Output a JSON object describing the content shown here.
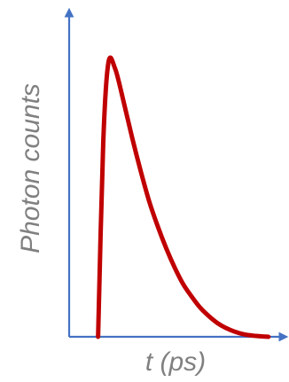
{
  "chart_data": {
    "type": "line",
    "title": "",
    "xlabel": "t (ps)",
    "ylabel": "Photon counts",
    "xticks": [],
    "yticks": [],
    "grid": false,
    "legend": "none",
    "colors": {
      "axis": "#4472C4",
      "curve": "#C00000",
      "label": "#808080"
    },
    "series": [
      {
        "x": [
          0.0,
          0.03,
          0.06,
          0.1,
          0.15,
          0.2,
          0.25,
          0.3,
          0.35,
          0.4,
          0.45,
          0.5,
          0.55,
          0.6,
          0.65,
          0.7,
          0.75,
          0.8,
          0.85,
          0.9,
          0.95,
          1.0
        ],
        "y": [
          0.0,
          0.7,
          0.99,
          0.97,
          0.85,
          0.72,
          0.6,
          0.49,
          0.4,
          0.32,
          0.25,
          0.19,
          0.145,
          0.105,
          0.075,
          0.05,
          0.032,
          0.019,
          0.01,
          0.005,
          0.002,
          0.0
        ]
      }
    ],
    "xlim": [
      -0.17,
      1.1
    ],
    "ylim": [
      0,
      1.18
    ]
  }
}
